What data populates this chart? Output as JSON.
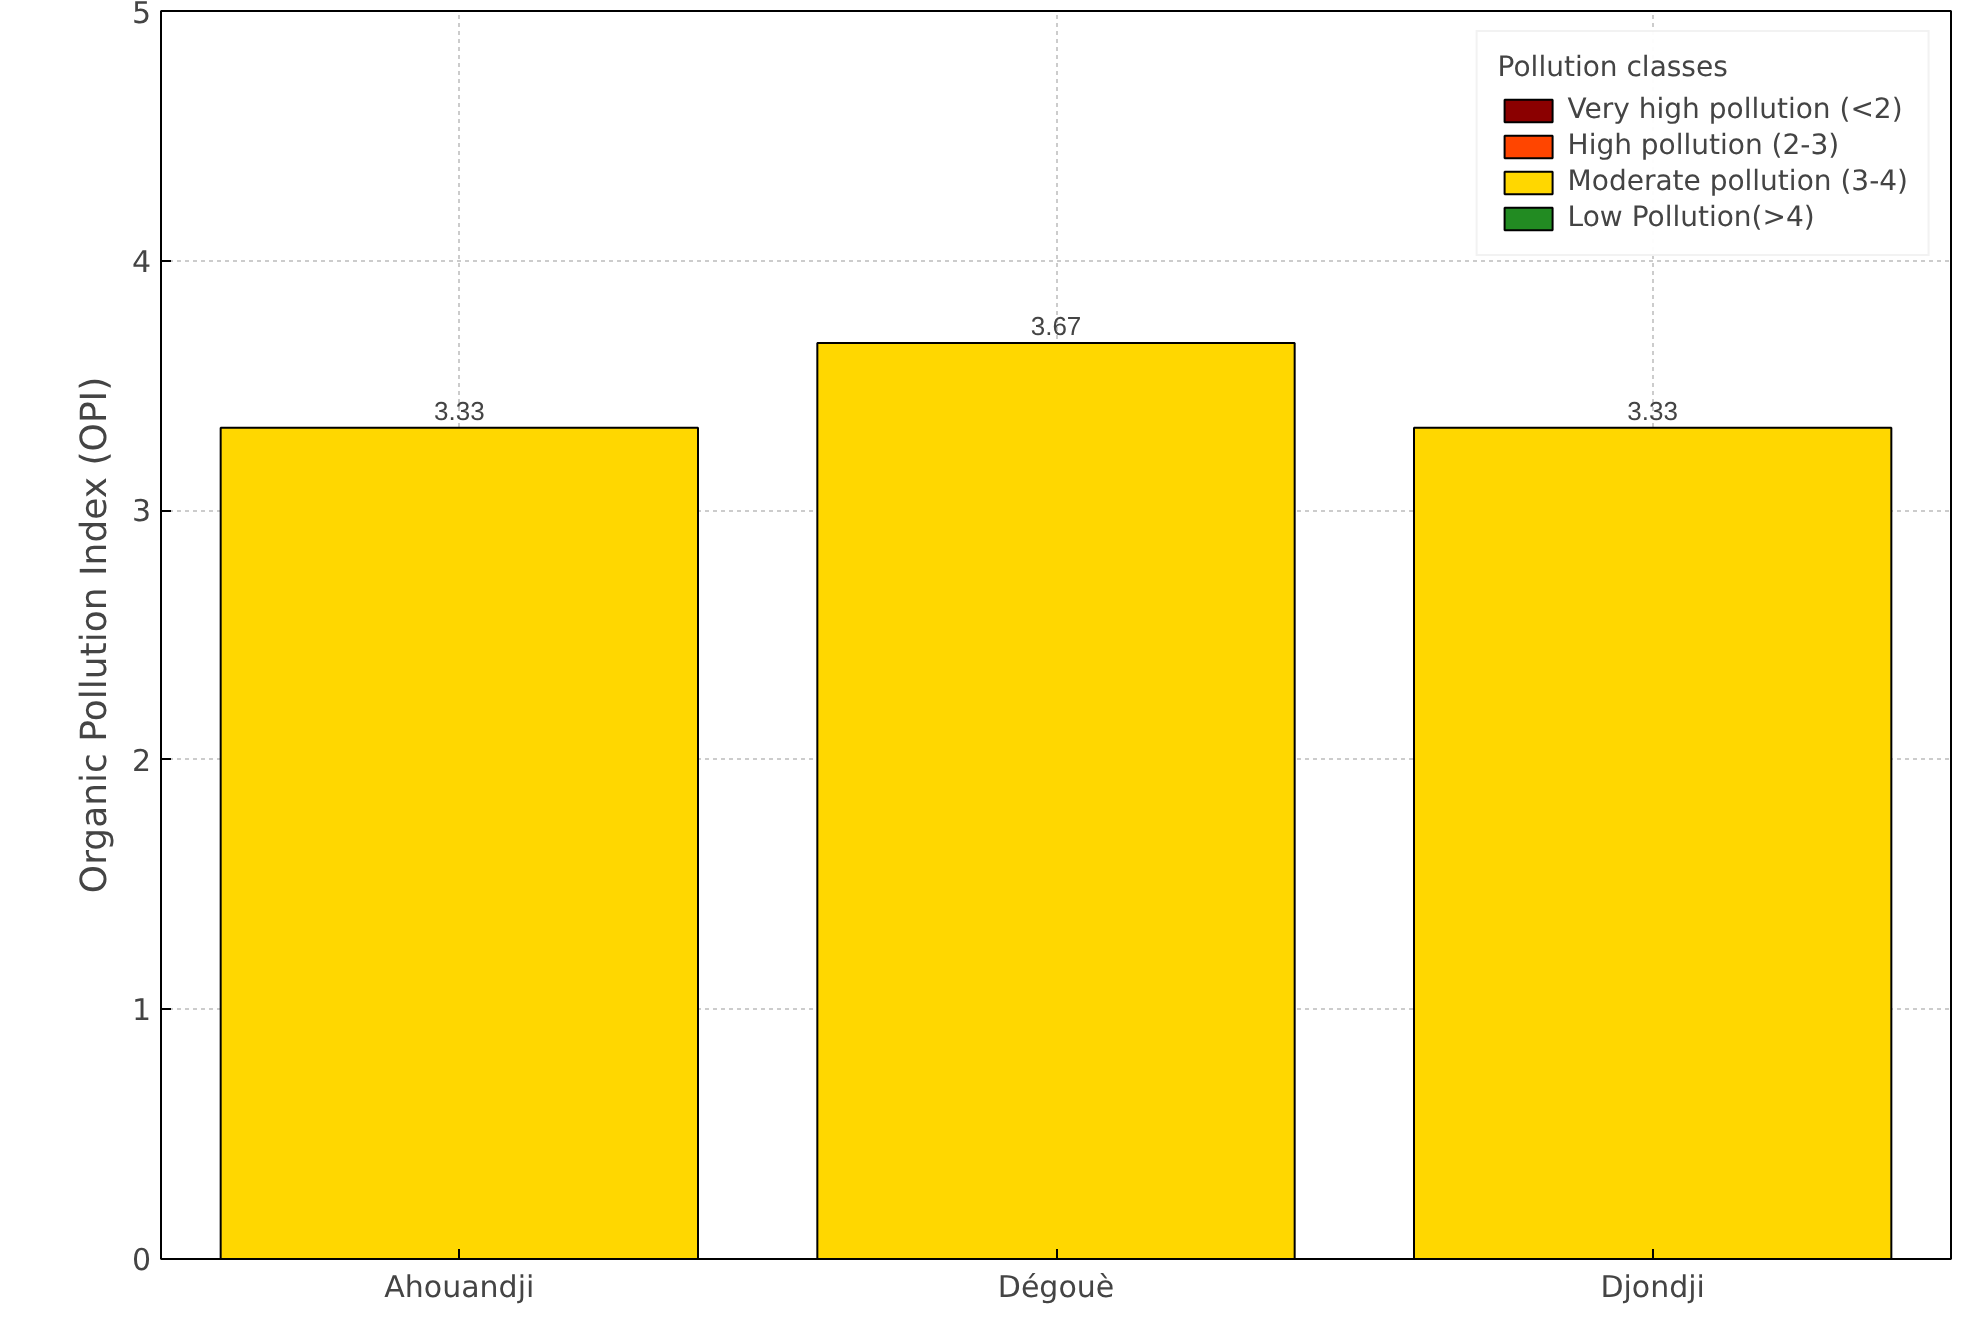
{
  "chart_data": {
    "type": "bar",
    "ylabel": "Organic Pollution Index (OPI)",
    "categories": [
      "Ahouandji",
      "Dégouè",
      "Djondji"
    ],
    "stacked": true,
    "legend_title": "Pollution classes",
    "legend": "top right",
    "data_labels": true,
    "grid": true,
    "ylim": [
      0,
      5
    ],
    "yticks": [
      0,
      1,
      2,
      3,
      4,
      5
    ],
    "series": [
      {
        "name": "Very high pollution (<2)",
        "color": "#8b0000",
        "values": [
          null,
          null,
          null
        ]
      },
      {
        "name": "High pollution (2-3)",
        "color": "#ff4500",
        "values": [
          null,
          null,
          null
        ]
      },
      {
        "name": "Moderate pollution (3-4)",
        "color": "#ffd700",
        "values": [
          3.33,
          3.67,
          3.33
        ]
      },
      {
        "name": "Low Pollution(>4)",
        "color": "#228b22",
        "values": [
          null,
          null,
          null
        ]
      }
    ]
  }
}
